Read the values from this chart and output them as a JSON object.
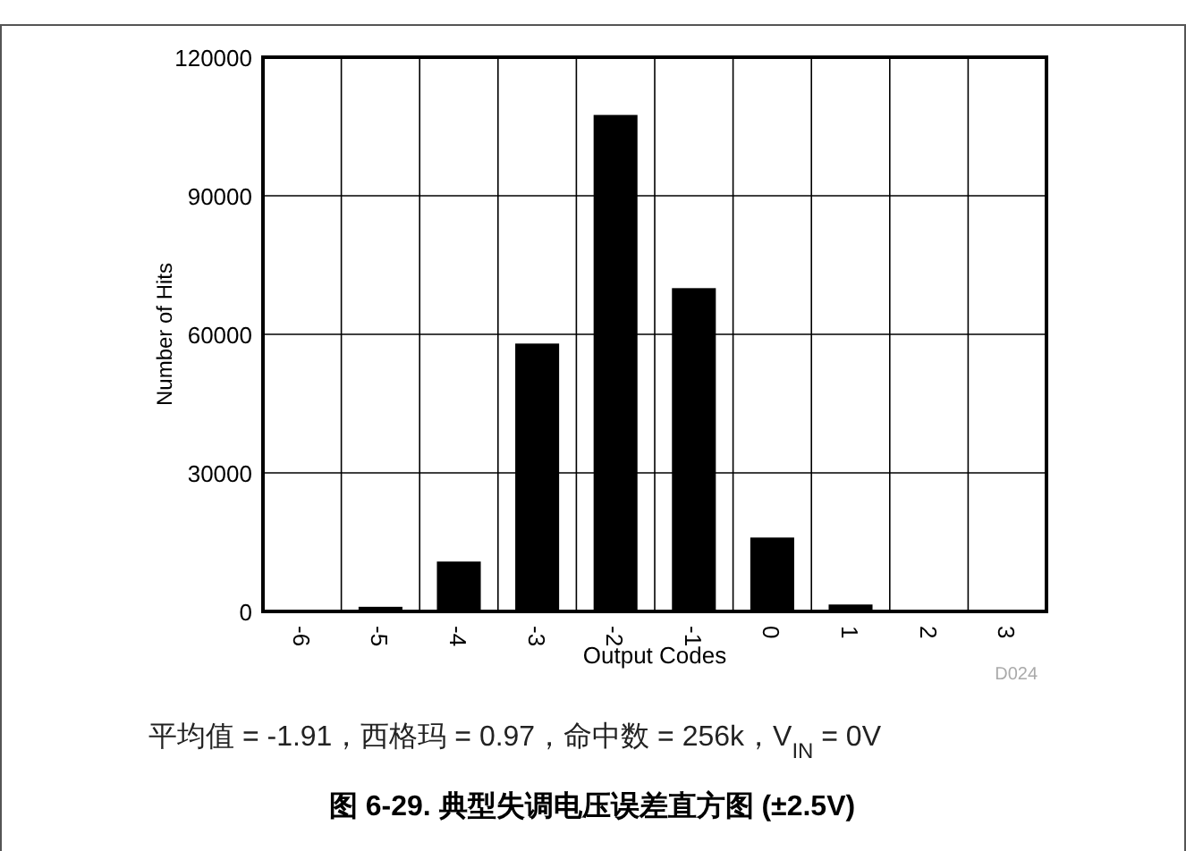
{
  "chart_data": {
    "type": "bar",
    "title": "图 6-29. 典型失调电压误差直方图 (±2.5V)",
    "xlabel": "Output Codes",
    "ylabel": "Number of Hits",
    "categories": [
      "-6",
      "-5",
      "-4",
      "-3",
      "-2",
      "-1",
      "0",
      "1",
      "2",
      "3"
    ],
    "values": [
      300,
      1000,
      10800,
      58000,
      107500,
      70000,
      16000,
      1500,
      300,
      200
    ],
    "color": "#000000",
    "ylim": [
      0,
      120000
    ],
    "yticks": [
      0,
      30000,
      60000,
      90000,
      120000
    ],
    "grid": true,
    "annotations": [
      "D024",
      "平均值 = -1.91，西格玛 = 0.97，命中数 = 256k，V$_{IN}$ = 0V"
    ]
  }
}
